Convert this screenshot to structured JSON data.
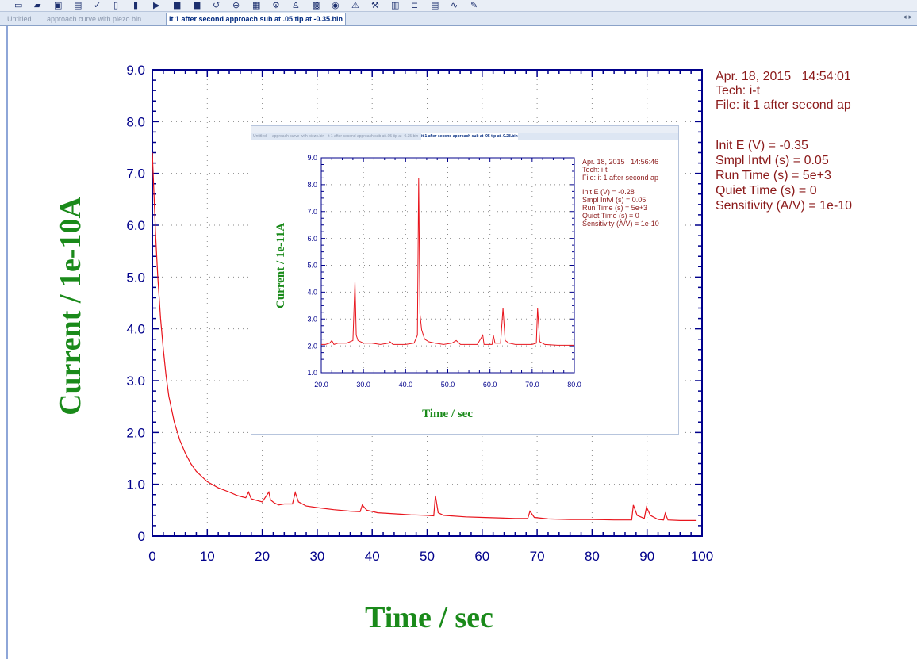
{
  "window": {
    "tabs": [
      {
        "label": "Untitled",
        "active": false
      },
      {
        "label": "approach curve with piezo.bin",
        "active": false
      },
      {
        "label": "it 1 after second approach sub at .05 tip at -0.35.bin",
        "active": true
      }
    ],
    "tab_scroll_arrows": "◂ ▸",
    "toolbar_icons": [
      "new-icon",
      "open-icon",
      "save-icon",
      "print-icon",
      "technique-icon",
      "parameters-icon",
      "run-icon",
      "pause-icon",
      "stop-icon",
      "reverse-icon",
      "zero-icon",
      "filter-icon",
      "magnify-icon",
      "graph-icon",
      "zoom-icon",
      "overlay-icon",
      "add-icon",
      "color-icon",
      "bar-icon",
      "axis-icon",
      "format-icon",
      "smooth-icon",
      "peak-icon",
      "cursor-icon"
    ]
  },
  "info_panel": {
    "date": "Apr. 18, 2015",
    "time": "14:54:01",
    "tech": "Tech: i-t",
    "file": "File: it 1 after second ap",
    "params": [
      "Init E (V) = -0.35",
      "Smpl Intvl (s) = 0.05",
      "Run Time (s) = 5e+3",
      "Quiet Time (s) = 0",
      "Sensitivity (A/V) = 1e-10"
    ],
    "color": "#8b1a1a"
  },
  "inset_info": {
    "date": "Apr. 18, 2015",
    "time": "14:56:46",
    "tech": "Tech: i-t",
    "file": "File: it 1 after second ap",
    "params": [
      "Init E (V) = -0.28",
      "Smpl Intvl (s) = 0.05",
      "Run Time (s) = 5e+3",
      "Quiet Time (s) = 0",
      "Sensitivity (A/V) = 1e-10"
    ]
  },
  "inset_tabs": [
    {
      "label": "Untitled",
      "active": false
    },
    {
      "label": "approach curve with piezo.bin",
      "active": false
    },
    {
      "label": "it 1 after second approach sub at .05 tip at -0.35.bin",
      "active": false
    },
    {
      "label": "it 1 after second approach sub at .05 tip at -0.28.bin",
      "active": true
    }
  ],
  "chart_data": [
    {
      "type": "line",
      "xlabel": "Time / sec",
      "ylabel": "Current / 1e-10A",
      "xlim": [
        0,
        100
      ],
      "ylim": [
        0,
        9
      ],
      "x_ticks": [
        "0",
        "10",
        "20",
        "30",
        "40",
        "50",
        "60",
        "70",
        "80",
        "90",
        "100"
      ],
      "y_ticks": [
        "0",
        "1.0",
        "2.0",
        "3.0",
        "4.0",
        "5.0",
        "6.0",
        "7.0",
        "8.0",
        "9.0"
      ],
      "grid": true,
      "line_color": "#e8141c",
      "axis_color": "#00008b",
      "label_color": "#1a8a1a",
      "series": [
        {
          "x": [
            0,
            0.3,
            0.6,
            1,
            1.5,
            2,
            2.5,
            3,
            4,
            5,
            6,
            7,
            8,
            10,
            12,
            14,
            15.5,
            17,
            17.5,
            18,
            18.6,
            20,
            21.2,
            21.5,
            22.2,
            23,
            24,
            25.5,
            26,
            26.6,
            28,
            30,
            33,
            36,
            37.8,
            38.2,
            39,
            41,
            44,
            47,
            50,
            51.2,
            51.5,
            52,
            53,
            57,
            60,
            63,
            66,
            68.3,
            68.7,
            69.5,
            72,
            76,
            80,
            84,
            87.2,
            87.5,
            88.2,
            89.5,
            89.9,
            90.6,
            92,
            93,
            93.3,
            93.8,
            96,
            99
          ],
          "y": [
            7.4,
            6.6,
            5.8,
            5.0,
            4.2,
            3.6,
            3.1,
            2.7,
            2.2,
            1.85,
            1.6,
            1.4,
            1.25,
            1.05,
            0.93,
            0.85,
            0.78,
            0.74,
            0.85,
            0.72,
            0.7,
            0.66,
            0.85,
            0.7,
            0.64,
            0.6,
            0.62,
            0.62,
            0.84,
            0.66,
            0.58,
            0.55,
            0.51,
            0.48,
            0.47,
            0.6,
            0.5,
            0.45,
            0.43,
            0.41,
            0.4,
            0.39,
            0.78,
            0.45,
            0.4,
            0.37,
            0.36,
            0.35,
            0.34,
            0.34,
            0.48,
            0.36,
            0.33,
            0.32,
            0.32,
            0.31,
            0.31,
            0.6,
            0.4,
            0.34,
            0.56,
            0.4,
            0.32,
            0.31,
            0.44,
            0.31,
            0.3,
            0.3
          ]
        }
      ]
    },
    {
      "type": "line",
      "xlabel": "Time / sec",
      "ylabel": "Current / 1e-11A",
      "xlim": [
        20,
        80
      ],
      "ylim": [
        1,
        9
      ],
      "x_ticks": [
        "20.0",
        "30.0",
        "40.0",
        "50.0",
        "60.0",
        "70.0",
        "80.0"
      ],
      "y_ticks": [
        "1.0",
        "2.0",
        "3.0",
        "4.0",
        "5.0",
        "6.0",
        "7.0",
        "8.0",
        "9.0"
      ],
      "grid": true,
      "line_color": "#e8141c",
      "series": [
        {
          "x": [
            20,
            21,
            22,
            22.5,
            23,
            24,
            26,
            27.5,
            28,
            28.3,
            28.7,
            30,
            32,
            34,
            36,
            36.3,
            37,
            40,
            42,
            42.8,
            43.1,
            43.4,
            43.8,
            44.5,
            45.5,
            47,
            49,
            51,
            52,
            53,
            55,
            57,
            58.3,
            58.6,
            59,
            60.5,
            60.8,
            61.2,
            62.5,
            63.1,
            63.6,
            64.5,
            66,
            68,
            70,
            71,
            71.3,
            71.8,
            73,
            76,
            80
          ],
          "y": [
            2.05,
            2.05,
            2.1,
            2.2,
            2.05,
            2.1,
            2.1,
            2.2,
            4.4,
            2.4,
            2.2,
            2.1,
            2.1,
            2.05,
            2.1,
            2.15,
            2.05,
            2.05,
            2.1,
            2.4,
            8.25,
            3.2,
            2.6,
            2.25,
            2.15,
            2.1,
            2.05,
            2.1,
            2.2,
            2.05,
            2.05,
            2.05,
            2.4,
            2.05,
            2.05,
            2.05,
            2.4,
            2.1,
            2.1,
            3.4,
            2.2,
            2.1,
            2.05,
            2.05,
            2.05,
            2.1,
            3.4,
            2.15,
            2.05,
            2.02,
            2.02
          ]
        }
      ]
    }
  ]
}
